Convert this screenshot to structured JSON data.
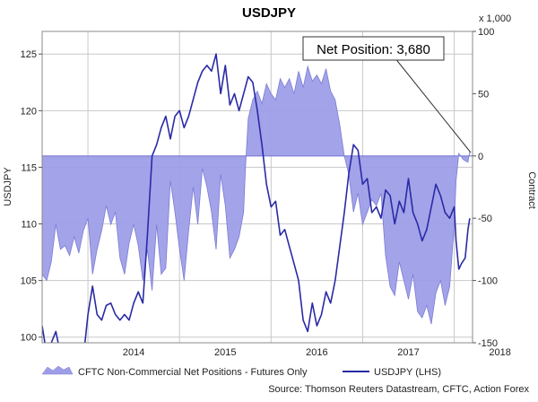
{
  "chart_data": {
    "type": "line",
    "title": "USDJPY",
    "left_axis": {
      "label": "USDJPY",
      "ticks": [
        100,
        105,
        110,
        115,
        120,
        125
      ],
      "range": [
        99.5,
        127
      ]
    },
    "right_axis": {
      "label": "Contract",
      "unit_note": "x 1,000",
      "ticks": [
        -150,
        -100,
        -50,
        0,
        50,
        100
      ],
      "range": [
        -150,
        100
      ]
    },
    "x_axis": {
      "ticks": [
        "2014",
        "2015",
        "2016",
        "2017",
        "2018"
      ],
      "range": [
        2013.5,
        2018.2
      ]
    },
    "grid": true,
    "legend_placement": "bottom",
    "callout": "Net Position: 3,680",
    "source": "Source: Thomson Reuters Datastream, CFTC, Action Forex",
    "colors": {
      "usdjpy_line": "#2a2aa6",
      "positions_fill": "#9e9ee8",
      "positions_edge": "#7b7bd6",
      "grid": "#c8c8c8"
    },
    "series": [
      {
        "name": "CFTC Non-Commercial Net Positions - Futures Only",
        "axis": "right",
        "style": "area",
        "points": [
          [
            2013.5,
            -95
          ],
          [
            2013.55,
            -100
          ],
          [
            2013.6,
            -85
          ],
          [
            2013.65,
            -55
          ],
          [
            2013.7,
            -75
          ],
          [
            2013.75,
            -72
          ],
          [
            2013.8,
            -80
          ],
          [
            2013.85,
            -65
          ],
          [
            2013.9,
            -78
          ],
          [
            2013.95,
            -60
          ],
          [
            2014.0,
            -50
          ],
          [
            2014.05,
            -95
          ],
          [
            2014.1,
            -75
          ],
          [
            2014.15,
            -60
          ],
          [
            2014.2,
            -40
          ],
          [
            2014.25,
            -55
          ],
          [
            2014.3,
            -45
          ],
          [
            2014.35,
            -82
          ],
          [
            2014.4,
            -95
          ],
          [
            2014.45,
            -70
          ],
          [
            2014.5,
            -55
          ],
          [
            2014.55,
            -72
          ],
          [
            2014.6,
            -100
          ],
          [
            2014.65,
            -75
          ],
          [
            2014.7,
            -108
          ],
          [
            2014.75,
            -55
          ],
          [
            2014.8,
            -95
          ],
          [
            2014.85,
            -90
          ],
          [
            2014.9,
            -20
          ],
          [
            2014.95,
            -45
          ],
          [
            2015.0,
            -75
          ],
          [
            2015.05,
            -100
          ],
          [
            2015.1,
            -60
          ],
          [
            2015.15,
            -25
          ],
          [
            2015.2,
            -55
          ],
          [
            2015.25,
            -10
          ],
          [
            2015.3,
            -25
          ],
          [
            2015.35,
            -45
          ],
          [
            2015.4,
            -75
          ],
          [
            2015.45,
            -15
          ],
          [
            2015.5,
            -40
          ],
          [
            2015.55,
            -82
          ],
          [
            2015.6,
            -75
          ],
          [
            2015.65,
            -65
          ],
          [
            2015.7,
            -45
          ],
          [
            2015.72,
            -10
          ],
          [
            2015.75,
            30
          ],
          [
            2015.8,
            45
          ],
          [
            2015.85,
            52
          ],
          [
            2015.9,
            42
          ],
          [
            2015.95,
            58
          ],
          [
            2016.0,
            50
          ],
          [
            2016.05,
            45
          ],
          [
            2016.1,
            62
          ],
          [
            2016.15,
            55
          ],
          [
            2016.2,
            62
          ],
          [
            2016.25,
            50
          ],
          [
            2016.3,
            68
          ],
          [
            2016.35,
            55
          ],
          [
            2016.4,
            72
          ],
          [
            2016.45,
            60
          ],
          [
            2016.5,
            65
          ],
          [
            2016.55,
            58
          ],
          [
            2016.6,
            70
          ],
          [
            2016.65,
            52
          ],
          [
            2016.7,
            45
          ],
          [
            2016.75,
            25
          ],
          [
            2016.8,
            0
          ],
          [
            2016.85,
            -15
          ],
          [
            2016.9,
            -45
          ],
          [
            2016.95,
            -30
          ],
          [
            2017.0,
            -55
          ],
          [
            2017.05,
            -45
          ],
          [
            2017.1,
            -35
          ],
          [
            2017.15,
            -40
          ],
          [
            2017.2,
            -30
          ],
          [
            2017.25,
            -80
          ],
          [
            2017.3,
            -105
          ],
          [
            2017.35,
            -112
          ],
          [
            2017.4,
            -85
          ],
          [
            2017.45,
            -100
          ],
          [
            2017.5,
            -115
          ],
          [
            2017.55,
            -95
          ],
          [
            2017.6,
            -125
          ],
          [
            2017.65,
            -130
          ],
          [
            2017.7,
            -120
          ],
          [
            2017.75,
            -135
          ],
          [
            2017.8,
            -110
          ],
          [
            2017.85,
            -100
          ],
          [
            2017.9,
            -120
          ],
          [
            2017.95,
            -105
          ],
          [
            2018.0,
            -55
          ],
          [
            2018.02,
            -20
          ],
          [
            2018.05,
            2
          ],
          [
            2018.1,
            -3
          ],
          [
            2018.15,
            -5
          ],
          [
            2018.17,
            3.68
          ]
        ]
      },
      {
        "name": "USDJPY (LHS)",
        "axis": "left",
        "style": "line",
        "points": [
          [
            2013.5,
            101
          ],
          [
            2013.55,
            98.5
          ],
          [
            2013.6,
            99.5
          ],
          [
            2013.65,
            100.5
          ],
          [
            2013.7,
            98.5
          ],
          [
            2013.75,
            98
          ],
          [
            2013.8,
            99
          ],
          [
            2013.85,
            97.5
          ],
          [
            2013.9,
            99
          ],
          [
            2013.95,
            98.2
          ],
          [
            2014.0,
            102
          ],
          [
            2014.05,
            104.5
          ],
          [
            2014.1,
            102
          ],
          [
            2014.15,
            101.5
          ],
          [
            2014.2,
            102.8
          ],
          [
            2014.25,
            103
          ],
          [
            2014.3,
            102
          ],
          [
            2014.35,
            101.5
          ],
          [
            2014.4,
            102
          ],
          [
            2014.45,
            101.5
          ],
          [
            2014.5,
            103
          ],
          [
            2014.55,
            104
          ],
          [
            2014.6,
            103
          ],
          [
            2014.65,
            109
          ],
          [
            2014.7,
            116
          ],
          [
            2014.75,
            117
          ],
          [
            2014.8,
            118.5
          ],
          [
            2014.85,
            119.5
          ],
          [
            2014.9,
            117.5
          ],
          [
            2014.95,
            119.5
          ],
          [
            2015.0,
            120
          ],
          [
            2015.05,
            118.5
          ],
          [
            2015.1,
            119.5
          ],
          [
            2015.15,
            121
          ],
          [
            2015.2,
            122.5
          ],
          [
            2015.25,
            123.5
          ],
          [
            2015.3,
            124
          ],
          [
            2015.35,
            123.5
          ],
          [
            2015.4,
            125
          ],
          [
            2015.45,
            121.5
          ],
          [
            2015.5,
            124
          ],
          [
            2015.55,
            120.5
          ],
          [
            2015.6,
            121.5
          ],
          [
            2015.65,
            120
          ],
          [
            2015.7,
            121.5
          ],
          [
            2015.75,
            123
          ],
          [
            2015.8,
            122.5
          ],
          [
            2015.85,
            120
          ],
          [
            2015.9,
            117
          ],
          [
            2015.95,
            113.5
          ],
          [
            2016.0,
            111.5
          ],
          [
            2016.05,
            112
          ],
          [
            2016.1,
            109
          ],
          [
            2016.15,
            109.5
          ],
          [
            2016.2,
            108
          ],
          [
            2016.25,
            106.5
          ],
          [
            2016.3,
            105
          ],
          [
            2016.35,
            101.5
          ],
          [
            2016.4,
            100.5
          ],
          [
            2016.45,
            103
          ],
          [
            2016.5,
            101
          ],
          [
            2016.55,
            102
          ],
          [
            2016.6,
            104
          ],
          [
            2016.65,
            103
          ],
          [
            2016.7,
            105
          ],
          [
            2016.75,
            108
          ],
          [
            2016.8,
            111
          ],
          [
            2016.85,
            114.5
          ],
          [
            2016.9,
            117
          ],
          [
            2016.95,
            116.5
          ],
          [
            2017.0,
            113.5
          ],
          [
            2017.05,
            114
          ],
          [
            2017.1,
            111
          ],
          [
            2017.15,
            111.5
          ],
          [
            2017.2,
            110.5
          ],
          [
            2017.25,
            113
          ],
          [
            2017.3,
            112.5
          ],
          [
            2017.35,
            110
          ],
          [
            2017.4,
            112
          ],
          [
            2017.45,
            111
          ],
          [
            2017.5,
            114
          ],
          [
            2017.55,
            111
          ],
          [
            2017.6,
            110
          ],
          [
            2017.65,
            108.5
          ],
          [
            2017.7,
            109.5
          ],
          [
            2017.75,
            111.5
          ],
          [
            2017.8,
            113.5
          ],
          [
            2017.85,
            112.5
          ],
          [
            2017.9,
            111
          ],
          [
            2017.95,
            110.5
          ],
          [
            2018.0,
            111.5
          ],
          [
            2018.02,
            108.5
          ],
          [
            2018.05,
            106
          ],
          [
            2018.08,
            106.5
          ],
          [
            2018.12,
            107
          ],
          [
            2018.15,
            109.5
          ],
          [
            2018.17,
            110.5
          ]
        ]
      }
    ]
  }
}
